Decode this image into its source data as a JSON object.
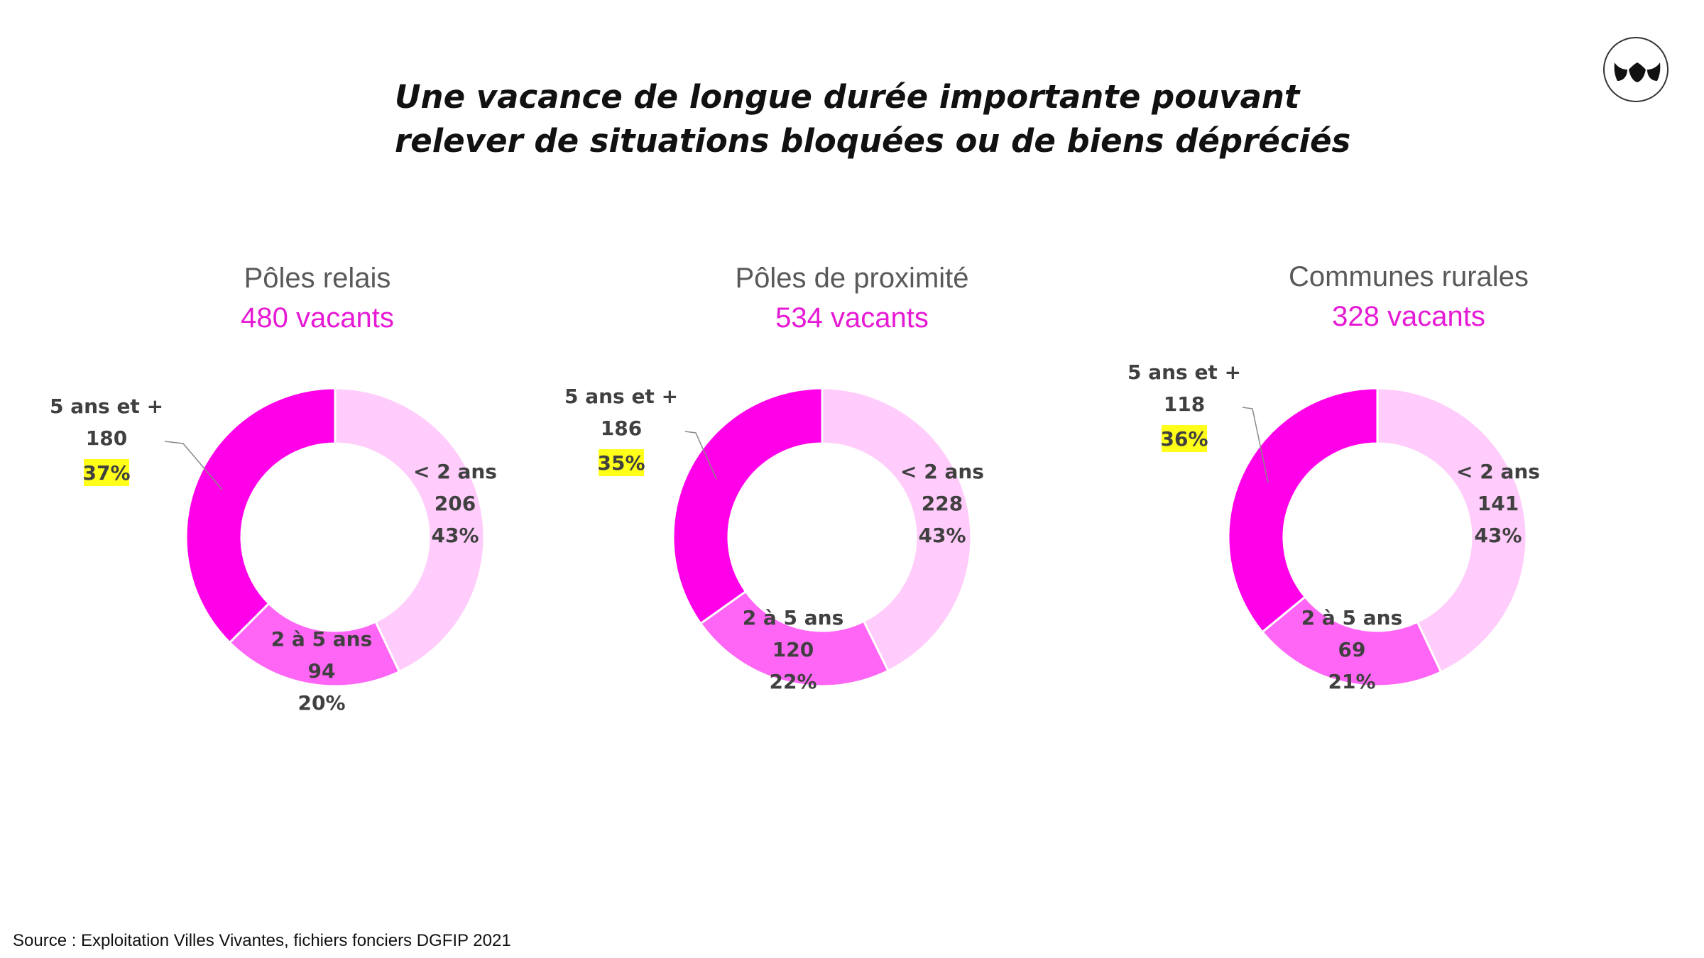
{
  "title": {
    "line1": "Une vacance de longue durée importante pouvant",
    "line2": "relever de situations bloquées ou de biens dépréciés"
  },
  "logo": {
    "icon": "villes-vivantes-logo-icon"
  },
  "source": "Source : Exploitation Villes Vivantes, fichiers fonciers DGFIP 2021",
  "colors": {
    "lt2": "#FFCCFB",
    "mid": "#FF66F5",
    "long": "#FF00E8",
    "highlight": "#FFFF19",
    "count": "#E619D5"
  },
  "chart_data": [
    {
      "type": "pie",
      "title": "Pôles relais",
      "subtitle": "480 vacants",
      "categories": [
        "< 2 ans",
        "2 à 5 ans",
        "5 ans et +"
      ],
      "values": [
        206,
        94,
        180
      ],
      "percent_labels": [
        "43%",
        "20%",
        "37%"
      ],
      "highlighted": "5 ans et +"
    },
    {
      "type": "pie",
      "title": "Pôles de proximité",
      "subtitle": "534 vacants",
      "categories": [
        "< 2 ans",
        "2 à 5 ans",
        "5 ans et +"
      ],
      "values": [
        228,
        120,
        186
      ],
      "percent_labels": [
        "43%",
        "22%",
        "35%"
      ],
      "highlighted": "5 ans et +"
    },
    {
      "type": "pie",
      "title": "Communes rurales",
      "subtitle": "328 vacants",
      "categories": [
        "< 2 ans",
        "2 à 5 ans",
        "5 ans et +"
      ],
      "values": [
        141,
        69,
        118
      ],
      "percent_labels": [
        "43%",
        "21%",
        "36%"
      ],
      "highlighted": "5 ans et +"
    }
  ]
}
